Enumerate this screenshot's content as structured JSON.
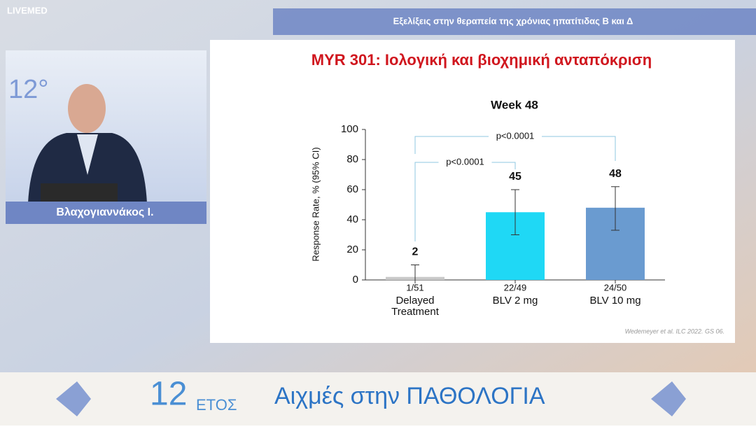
{
  "header": {
    "logo": "LIVEMED",
    "title": "Εξελίξεις στην θεραπεία της χρόνιας ηπατίτιδας Β και Δ"
  },
  "speaker": {
    "name": "Βλαχογιαννάκος Ι."
  },
  "slide": {
    "title": "MYR 301: Ιολογική και βιοχημική ανταπόκριση",
    "citation": "Wedemeyer et al. ILC 2022. GS 06."
  },
  "chart_data": {
    "type": "bar",
    "title": "Week 48",
    "y_label": "Response Rate, % (95% CI)",
    "categories": [
      "Delayed Treatment",
      "BLV 2 mg",
      "BLV 10 mg"
    ],
    "counts": [
      "1/51",
      "22/49",
      "24/50"
    ],
    "values": [
      2,
      45,
      48
    ],
    "ci_low": [
      0,
      30,
      33
    ],
    "ci_high": [
      10,
      60,
      62
    ],
    "colors": [
      "#c8c8c8",
      "#1fd8f5",
      "#6a9bd0"
    ],
    "ylim": [
      0,
      100
    ],
    "yticks": [
      0,
      20,
      40,
      60,
      80,
      100
    ],
    "annotations": [
      "p<0.0001",
      "p<0.0001"
    ]
  },
  "banner": {
    "number": "12",
    "word": "ΕΤΟΣ",
    "title": "Αιχμές στην ΠΑΘΟΛΟΓΙΑ"
  }
}
